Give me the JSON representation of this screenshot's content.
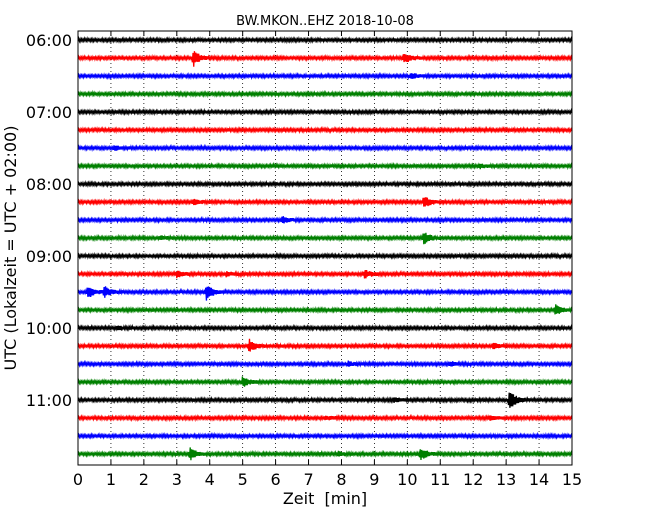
{
  "chart_data": {
    "type": "line",
    "title": "BW.MKON..EHZ 2018-10-08",
    "xlabel": "Zeit  [min]",
    "ylabel": "UTC (Lokalzeit = UTC + 02:00)",
    "xlim": [
      0,
      15
    ],
    "x_ticks": [
      "0",
      "1",
      "2",
      "3",
      "4",
      "5",
      "6",
      "7",
      "8",
      "9",
      "10",
      "11",
      "12",
      "13",
      "14",
      "15"
    ],
    "y_ticks": [
      {
        "label": "06:00",
        "trace": 0
      },
      {
        "label": "07:00",
        "trace": 4
      },
      {
        "label": "08:00",
        "trace": 8
      },
      {
        "label": "09:00",
        "trace": 12
      },
      {
        "label": "10:00",
        "trace": 16
      },
      {
        "label": "11:00",
        "trace": 20
      }
    ],
    "grid": "vertical dotted at each minute",
    "trace_interval_min": 15,
    "colors": [
      "#000000",
      "#ff0000",
      "#0000ff",
      "#008000"
    ],
    "traces": [
      {
        "start": "06:00",
        "events": []
      },
      {
        "start": "06:15",
        "events": [
          {
            "t": 3.5,
            "amp": 8
          },
          {
            "t": 9.9,
            "amp": 5
          }
        ]
      },
      {
        "start": "06:30",
        "events": [
          {
            "t": 10.1,
            "amp": 3
          }
        ]
      },
      {
        "start": "06:45",
        "events": []
      },
      {
        "start": "07:00",
        "events": []
      },
      {
        "start": "07:15",
        "events": []
      },
      {
        "start": "07:30",
        "events": [
          {
            "t": 1.1,
            "amp": 2
          }
        ]
      },
      {
        "start": "07:45",
        "events": [
          {
            "t": 12.2,
            "amp": 2
          }
        ]
      },
      {
        "start": "08:00",
        "events": []
      },
      {
        "start": "08:15",
        "events": [
          {
            "t": 3.5,
            "amp": 3
          },
          {
            "t": 10.5,
            "amp": 6
          }
        ]
      },
      {
        "start": "08:30",
        "events": [
          {
            "t": 6.2,
            "amp": 3
          }
        ]
      },
      {
        "start": "08:45",
        "events": [
          {
            "t": 2.5,
            "amp": 2
          },
          {
            "t": 10.5,
            "amp": 6
          }
        ]
      },
      {
        "start": "09:00",
        "events": []
      },
      {
        "start": "09:15",
        "events": [
          {
            "t": 3.0,
            "amp": 3
          },
          {
            "t": 4.5,
            "amp": 2
          },
          {
            "t": 8.7,
            "amp": 4
          }
        ]
      },
      {
        "start": "09:30",
        "events": [
          {
            "t": 0.3,
            "amp": 6
          },
          {
            "t": 0.8,
            "amp": 5
          },
          {
            "t": 3.9,
            "amp": 8
          }
        ]
      },
      {
        "start": "09:45",
        "events": [
          {
            "t": 14.5,
            "amp": 5
          }
        ]
      },
      {
        "start": "10:00",
        "events": [
          {
            "t": 1.2,
            "amp": 2
          }
        ]
      },
      {
        "start": "10:15",
        "events": [
          {
            "t": 5.2,
            "amp": 6
          },
          {
            "t": 12.6,
            "amp": 3
          }
        ]
      },
      {
        "start": "10:30",
        "events": [
          {
            "t": 8.2,
            "amp": 2
          },
          {
            "t": 11.3,
            "amp": 2
          }
        ]
      },
      {
        "start": "10:45",
        "events": [
          {
            "t": 5.0,
            "amp": 5
          }
        ]
      },
      {
        "start": "11:00",
        "events": [
          {
            "t": 9.6,
            "amp": 2
          },
          {
            "t": 13.1,
            "amp": 10
          }
        ]
      },
      {
        "start": "11:15",
        "events": [
          {
            "t": 7.5,
            "amp": 2
          },
          {
            "t": 12.5,
            "amp": 2
          }
        ]
      },
      {
        "start": "11:30",
        "events": []
      },
      {
        "start": "11:45",
        "events": [
          {
            "t": 3.4,
            "amp": 6
          },
          {
            "t": 7.9,
            "amp": 2
          },
          {
            "t": 10.4,
            "amp": 6
          }
        ]
      }
    ]
  }
}
